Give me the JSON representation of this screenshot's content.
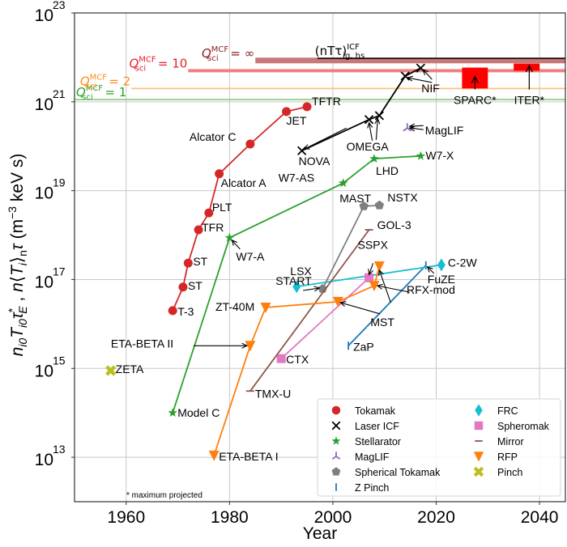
{
  "chart_data": {
    "type": "scatter",
    "title": "",
    "xlabel": "Year",
    "ylabel_parts": {
      "main": "n_i0 T_i0 τ*_E ,  n⟨T_i⟩_n τ (m⁻³ keV s)"
    },
    "xlim": [
      1950,
      2045
    ],
    "ylim_log10": [
      12,
      23
    ],
    "yscale": "log",
    "grid": true,
    "xticks": [
      1960,
      1980,
      2000,
      2020,
      2040
    ],
    "xtick_labels": [
      "1960",
      "1980",
      "2000",
      "2020",
      "2040"
    ],
    "yticks_log10": [
      13,
      15,
      17,
      19,
      21,
      23
    ],
    "ytick_base": "10",
    "ytick_exponents": [
      "13",
      "15",
      "17",
      "19",
      "21",
      "23"
    ],
    "thresholds": [
      {
        "name": "Q_sci^MCF = 1",
        "label_q": "Q",
        "label_sub": "sci",
        "label_sup": "MCF",
        "label_rhs": "= 1",
        "log10": 21.05,
        "x_start": 1950,
        "color": "#2ca02c",
        "line_color": "#98d08f"
      },
      {
        "name": "Q_sci^MCF = 2",
        "label_q": "Q",
        "label_sub": "sci",
        "label_sup": "MCF",
        "label_rhs": "= 2",
        "log10": 21.3,
        "x_start": 1961,
        "color": "#ff8c1a",
        "line_color": "#ffc080"
      },
      {
        "name": "Q_sci^MCF = 10",
        "label_q": "Q",
        "label_sub": "sci",
        "label_sup": "MCF",
        "label_rhs": "= 10",
        "log10": 21.7,
        "x_start": 1972,
        "color": "#e8202a",
        "line_color": "#f08080"
      },
      {
        "name": "Q_sci^MCF = ∞",
        "label_q": "Q",
        "label_sub": "sci",
        "label_sup": "MCF",
        "label_rhs": "= ∞",
        "log10": 21.93,
        "x_start": 1985,
        "color": "#8b1a1a",
        "line_color": "#c87878"
      }
    ],
    "icf_ignition": {
      "label": "(nTτ)",
      "label_sup": "ICF",
      "label_sub": "ig, hs",
      "log10": 21.96,
      "x_start": 1997,
      "color": "#000000"
    },
    "projected_boxes": [
      {
        "name": "SPARC*",
        "x_range": [
          2025,
          2030
        ],
        "log10_range": [
          21.3,
          21.77
        ],
        "label_log10": 20.95,
        "label_x": 2027.5,
        "color": "#ff0000"
      },
      {
        "name": "ITER*",
        "x_range": [
          2035,
          2040
        ],
        "log10_range": [
          21.7,
          21.86
        ],
        "label_log10": 20.95,
        "label_x": 2038,
        "color": "#ff0000"
      }
    ],
    "footnote": "* maximum projected",
    "series": [
      {
        "name": "Tokamak",
        "marker": "circle",
        "color": "#d62728",
        "connect": true,
        "points": [
          {
            "label": "T-3",
            "year": 1969,
            "log10": 16.3
          },
          {
            "label": "ST",
            "year": 1971,
            "log10": 16.83
          },
          {
            "label": "ST",
            "year": 1972,
            "log10": 17.37
          },
          {
            "label": "TFR",
            "year": 1974,
            "log10": 18.12
          },
          {
            "label": "PLT",
            "year": 1976,
            "log10": 18.5
          },
          {
            "label": "Alcator A",
            "year": 1978,
            "log10": 19.38
          },
          {
            "label": "Alcator C",
            "year": 1984,
            "log10": 20.05
          },
          {
            "label": "JET",
            "year": 1991,
            "log10": 20.78
          },
          {
            "label": "TFTR",
            "year": 1995,
            "log10": 20.89
          }
        ]
      },
      {
        "name": "Laser ICF",
        "marker": "x",
        "color": "#000000",
        "connect": true,
        "points": [
          {
            "label": "NOVA",
            "year": 1994,
            "log10": 19.9
          },
          {
            "label": "OMEGA",
            "year": 2007,
            "log10": 20.6
          },
          {
            "label": "OMEGA",
            "year": 2009,
            "log10": 20.69
          },
          {
            "label": "NIF",
            "year": 2014,
            "log10": 21.58
          },
          {
            "label": "NIF",
            "year": 2017,
            "log10": 21.76
          }
        ]
      },
      {
        "name": "Stellarator",
        "marker": "star",
        "color": "#2ca02c",
        "connect": true,
        "points": [
          {
            "label": "Model C",
            "year": 1969,
            "log10": 14.0
          },
          {
            "label": "W7-A",
            "year": 1980,
            "log10": 17.94
          },
          {
            "label": "W7-AS",
            "year": 2002,
            "log10": 19.17
          },
          {
            "label": "LHD",
            "year": 2008,
            "log10": 19.72
          },
          {
            "label": "W7-X",
            "year": 2017,
            "log10": 19.78
          }
        ]
      },
      {
        "name": "MagLIF",
        "marker": "tri",
        "color": "#9467bd",
        "connect": false,
        "points": [
          {
            "label": "MagLIF",
            "year": 2014.4,
            "log10": 20.41
          }
        ]
      },
      {
        "name": "Spherical Tokamak",
        "marker": "pentagon",
        "color": "#7f7f7f",
        "connect": true,
        "points": [
          {
            "label": "START",
            "year": 1998,
            "log10": 16.79
          },
          {
            "label": "MAST",
            "year": 2006,
            "log10": 18.65
          },
          {
            "label": "NSTX",
            "year": 2009,
            "log10": 18.67
          }
        ]
      },
      {
        "name": "Z Pinch",
        "marker": "vline",
        "color": "#1f77b4",
        "connect": true,
        "points": [
          {
            "label": "ZaP",
            "year": 2003,
            "log10": 15.51
          },
          {
            "label": "FuZE",
            "year": 2018,
            "log10": 17.32
          }
        ]
      },
      {
        "name": "FRC",
        "marker": "diamond",
        "color": "#17becf",
        "connect": true,
        "points": [
          {
            "label": "LSX",
            "year": 1993,
            "log10": 16.84
          },
          {
            "label": "C-2W",
            "year": 2021,
            "log10": 17.33
          }
        ]
      },
      {
        "name": "Spheromak",
        "marker": "square",
        "color": "#e377c2",
        "connect": true,
        "points": [
          {
            "label": "CTX",
            "year": 1990,
            "log10": 15.22
          },
          {
            "label": "SSPX",
            "year": 2007,
            "log10": 17.04
          }
        ]
      },
      {
        "name": "Mirror",
        "marker": "hline",
        "color": "#8c564b",
        "connect": true,
        "points": [
          {
            "label": "TMX-U",
            "year": 1984,
            "log10": 14.49
          },
          {
            "label": "GOL-3",
            "year": 2007,
            "log10": 18.12
          }
        ]
      },
      {
        "name": "RFP",
        "marker": "tri-down",
        "color": "#ff7f0e",
        "connect": true,
        "points": [
          {
            "label": "ETA-BETA I",
            "year": 1977,
            "log10": 13.04
          },
          {
            "label": "ETA-BETA II",
            "year": 1984,
            "log10": 15.51
          },
          {
            "label": "ZT-40M",
            "year": 1987,
            "log10": 16.37
          },
          {
            "label": "MST",
            "year": 2001,
            "log10": 16.5
          },
          {
            "label": "RFX-mod",
            "year": 2008,
            "log10": 16.86
          },
          {
            "label": "MST",
            "year": 2009,
            "log10": 17.3
          }
        ]
      },
      {
        "name": "Pinch",
        "marker": "plus-x",
        "color": "#bcbd22",
        "connect": false,
        "points": [
          {
            "label": "ZETA",
            "year": 1957,
            "log10": 14.95
          }
        ]
      }
    ],
    "legend": {
      "placement": "lower-right",
      "columns": [
        [
          "Tokamak",
          "Laser ICF",
          "Stellarator",
          "MagLIF",
          "Spherical Tokamak",
          "Z Pinch"
        ],
        [
          "FRC",
          "Spheromak",
          "Mirror",
          "RFP",
          "Pinch"
        ]
      ]
    }
  }
}
